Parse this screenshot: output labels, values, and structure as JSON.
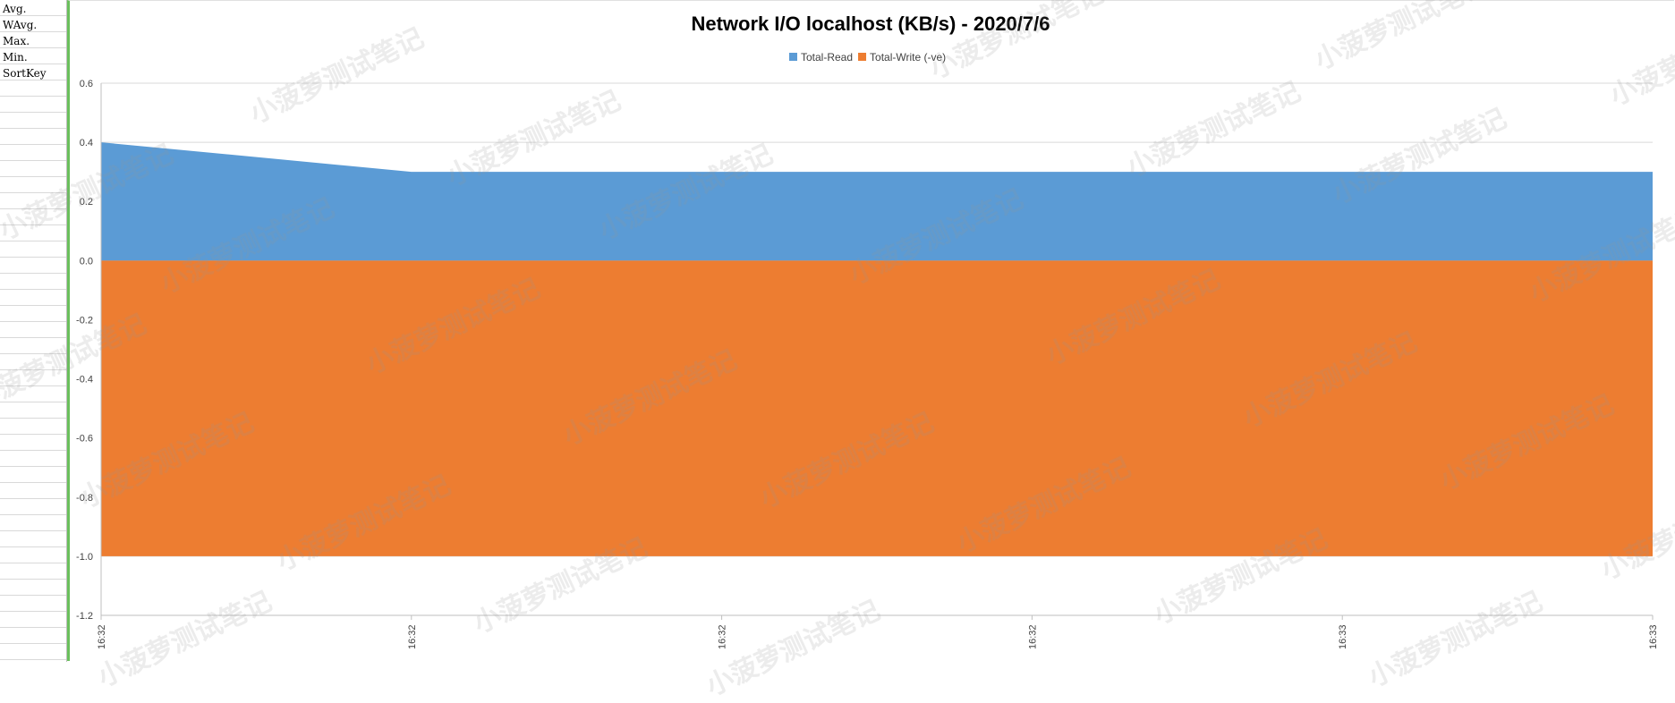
{
  "sheet": {
    "row_labels": [
      "Avg.",
      "WAvg.",
      "Max.",
      "Min.",
      "SortKey"
    ]
  },
  "watermark_text": "小菠萝测试笔记",
  "chart_data": {
    "type": "area",
    "title": "Network I/O localhost (KB/s) - 2020/7/6",
    "xlabel": "",
    "ylabel": "",
    "x": [
      "16:32",
      "16:32",
      "16:32",
      "16:32",
      "16:33",
      "16:33"
    ],
    "series": [
      {
        "name": "Total-Read",
        "values": [
          0.4,
          0.3,
          0.3,
          0.3,
          0.3,
          0.3
        ],
        "color": "#5b9bd5"
      },
      {
        "name": "Total-Write (-ve)",
        "values": [
          -1.0,
          -1.0,
          -1.0,
          -1.0,
          -1.0,
          -1.0
        ],
        "color": "#ed7d31"
      }
    ],
    "ylim": [
      -1.2,
      0.6
    ],
    "yticks": [
      "0.6",
      "0.4",
      "0.2",
      "0.0",
      "-0.2",
      "-0.4",
      "-0.6",
      "-0.8",
      "-1.0",
      "-1.2"
    ],
    "grid": true,
    "legend_position": "top"
  }
}
